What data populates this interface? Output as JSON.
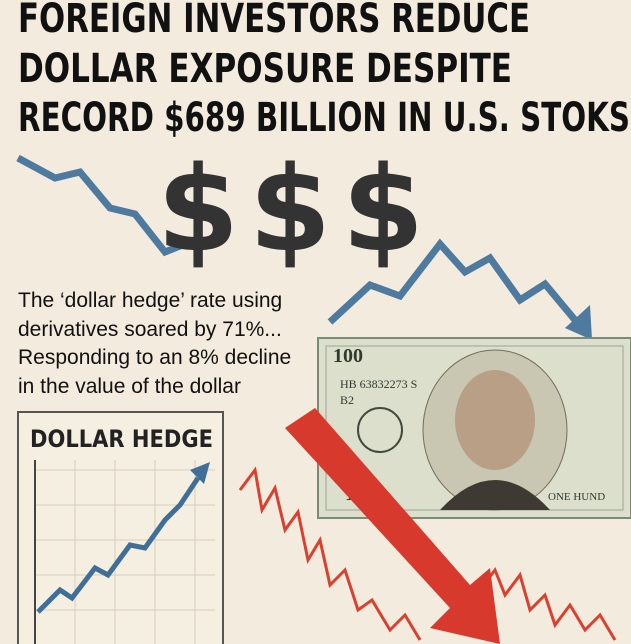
{
  "title_lines": [
    "FOREIGN INVESTORS REDUCE",
    "DOLLAR EXPOSURE DESPITE",
    "RECORD $689 BILLION IN U.S. STOKS"
  ],
  "symbols": [
    "$",
    "$",
    "$"
  ],
  "body_lines": [
    "The ‘dollar hedge’ rate using",
    "derivatives soared by 71%...",
    "Responding to an 8% decline",
    "in the value of the dollar"
  ],
  "box_label": "DOLLAR HEDGE",
  "banknote": {
    "denomination": "100",
    "serial": "HB 63832273 S",
    "code": "B2",
    "words": "ONE HUND"
  }
}
